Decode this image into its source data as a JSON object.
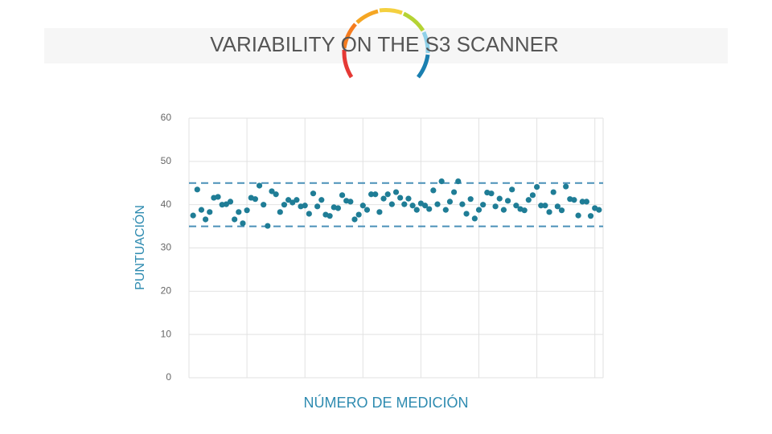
{
  "chart_data": {
    "type": "scatter",
    "title": "VARIABILITY ON THE S3 SCANNER",
    "x_label": "NÚMERO DE MEDICIÓN",
    "y_label": "PUNTUACIÓN",
    "x": [
      1,
      2,
      3,
      4,
      5,
      6,
      7,
      8,
      9,
      10,
      11,
      12,
      13,
      14,
      15,
      16,
      17,
      18,
      19,
      20,
      21,
      22,
      23,
      24,
      25,
      26,
      27,
      28,
      29,
      30,
      31,
      32,
      33,
      34,
      35,
      36,
      37,
      38,
      39,
      40,
      41,
      42,
      43,
      44,
      45,
      46,
      47,
      48,
      49,
      50,
      51,
      52,
      53,
      54,
      55,
      56,
      57,
      58,
      59,
      60,
      61,
      62,
      63,
      64,
      65,
      66,
      67,
      68,
      69,
      70,
      71,
      72,
      73,
      74,
      75,
      76,
      77,
      78,
      79,
      80,
      81,
      82,
      83,
      84,
      85,
      86,
      87,
      88,
      89,
      90,
      91,
      92,
      93,
      94,
      95,
      96,
      97,
      98,
      99
    ],
    "values": [
      37.5,
      43.5,
      38.8,
      36.6,
      38.3,
      41.6,
      41.8,
      40,
      40.1,
      40.7,
      36.6,
      38.3,
      35.7,
      38.7,
      41.6,
      41.3,
      44.4,
      40,
      35.1,
      43.1,
      42.4,
      38.3,
      40,
      41.1,
      40.5,
      41.1,
      39.6,
      39.8,
      37.9,
      42.6,
      39.6,
      41.1,
      37.7,
      37.4,
      39.4,
      39.2,
      42.2,
      40.9,
      40.7,
      36.6,
      37.7,
      39.8,
      38.8,
      42.4,
      42.4,
      38.3,
      41.4,
      42.4,
      40.1,
      42.9,
      41.6,
      40.1,
      41.4,
      39.8,
      38.8,
      40.3,
      39.8,
      39,
      43.3,
      40.1,
      45.4,
      38.8,
      40.7,
      42.9,
      45.4,
      40.1,
      37.9,
      41.3,
      36.8,
      38.8,
      40,
      42.8,
      42.6,
      39.6,
      41.4,
      38.8,
      40.9,
      43.5,
      39.8,
      39,
      38.7,
      41.1,
      42.2,
      44.1,
      39.8,
      39.8,
      38.3,
      42.9,
      39.6,
      38.7,
      44.2,
      41.3,
      41.1,
      37.5,
      40.7,
      40.7,
      37.4,
      39.2,
      38.8
    ],
    "color": "#1f7d96",
    "reference_lines": [
      35,
      45
    ],
    "reference_color": "#4a90b8",
    "xlim": [
      0,
      100
    ],
    "xticks": [
      0,
      14,
      28,
      42,
      56,
      70,
      84,
      98
    ],
    "ylim": [
      0,
      60
    ],
    "yticks": [
      0,
      10,
      20,
      30,
      40,
      50,
      60
    ],
    "grid": true
  }
}
